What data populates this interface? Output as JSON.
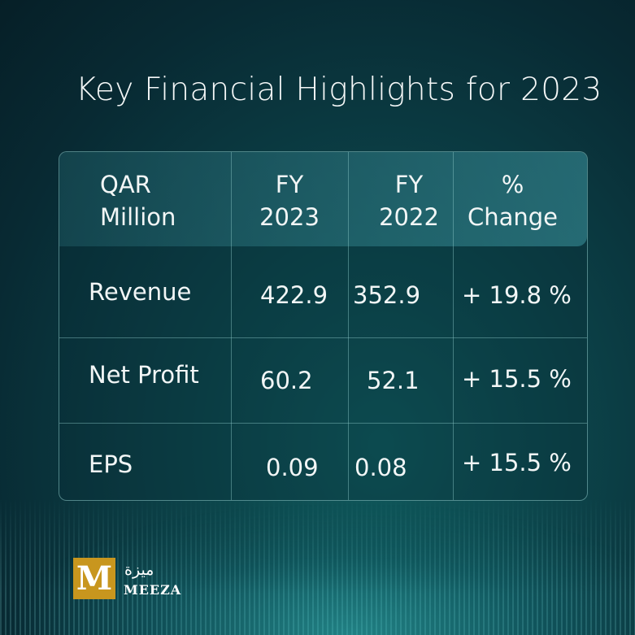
{
  "title": "Key Financial Highlights for 2023",
  "table": {
    "headers": [
      [
        "QAR",
        "Million"
      ],
      [
        "FY",
        "2023"
      ],
      [
        "FY",
        "2022"
      ],
      [
        "%",
        "Change"
      ]
    ],
    "rows": [
      {
        "label": "Revenue",
        "fy2023": "422.9",
        "fy2022": "352.9",
        "change": "+ 19.8 %"
      },
      {
        "label": "Net Profit",
        "fy2023": "60.2",
        "fy2022": "52.1",
        "change": "+ 15.5 %"
      },
      {
        "label": "EPS",
        "fy2023": "0.09",
        "fy2022": "0.08",
        "change": "+ 15.5 %"
      }
    ]
  },
  "logo": {
    "mark": "M",
    "arabic": "ميزة",
    "name": "MEEZA"
  }
}
